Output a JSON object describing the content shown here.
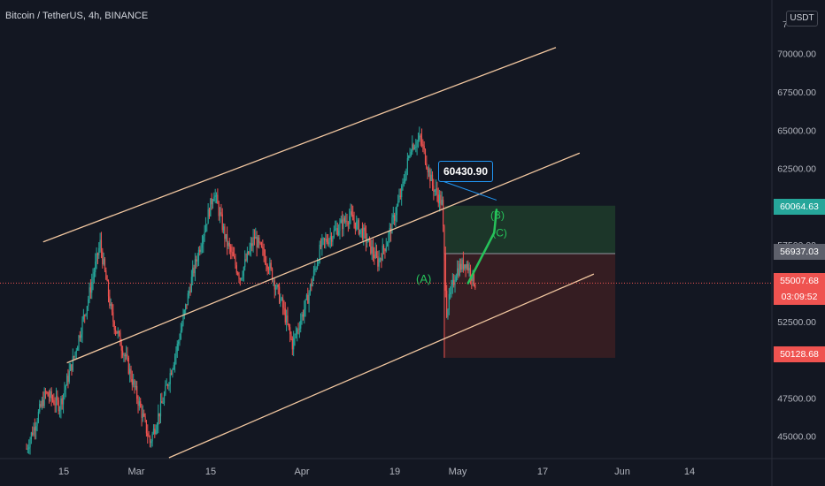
{
  "title": "Bitcoin / TetherUS, 4h, BINANCE",
  "currency_label": "USDT",
  "top_tick_fragment": "7",
  "callout_label": "60430.90",
  "wave_labels": [
    "(A)",
    "(B)",
    "(C)"
  ],
  "price_labels": {
    "target": "60064.63",
    "entry": "56937.03",
    "current": "55007.68",
    "countdown": "03:09:52",
    "stop": "50128.68"
  },
  "colors": {
    "background": "#131722",
    "axis_text": "#b2b5be",
    "channel": "#f2c7a0",
    "candle_up": "#26a69a",
    "candle_down": "#ef5350",
    "wave": "#26c35a",
    "callout_border": "#2196f3",
    "profit_zone": "#1e3a2a",
    "loss_zone": "#3a1e22",
    "current_line": "#ef5350"
  },
  "chart_data": {
    "type": "candlestick",
    "symbol": "Bitcoin / TetherUS",
    "interval": "4h",
    "exchange": "BINANCE",
    "x_tick_labels": [
      "15",
      "Mar",
      "15",
      "Apr",
      "19",
      "May",
      "17",
      "Jun",
      "14"
    ],
    "y_tick_labels": [
      "45000.00",
      "47500.00",
      "52500.00",
      "57500.00",
      "62500.00",
      "65000.00",
      "67500.00",
      "70000.00"
    ],
    "ylim": [
      43600,
      73500
    ],
    "grid": false,
    "price_path": [
      {
        "x": 0,
        "y": 44200
      },
      {
        "x": 8,
        "y": 47800
      },
      {
        "x": 14,
        "y": 47000
      },
      {
        "x": 20,
        "y": 50200
      },
      {
        "x": 26,
        "y": 54000
      },
      {
        "x": 31,
        "y": 57600
      },
      {
        "x": 36,
        "y": 52800
      },
      {
        "x": 42,
        "y": 50000
      },
      {
        "x": 48,
        "y": 46800
      },
      {
        "x": 52,
        "y": 44600
      },
      {
        "x": 58,
        "y": 47600
      },
      {
        "x": 64,
        "y": 51200
      },
      {
        "x": 70,
        "y": 55600
      },
      {
        "x": 75,
        "y": 58600
      },
      {
        "x": 79,
        "y": 61000
      },
      {
        "x": 84,
        "y": 57800
      },
      {
        "x": 90,
        "y": 55400
      },
      {
        "x": 96,
        "y": 58000
      },
      {
        "x": 102,
        "y": 56200
      },
      {
        "x": 108,
        "y": 53400
      },
      {
        "x": 112,
        "y": 51000
      },
      {
        "x": 118,
        "y": 53800
      },
      {
        "x": 124,
        "y": 57400
      },
      {
        "x": 130,
        "y": 58400
      },
      {
        "x": 136,
        "y": 59400
      },
      {
        "x": 142,
        "y": 58200
      },
      {
        "x": 148,
        "y": 56400
      },
      {
        "x": 152,
        "y": 57800
      },
      {
        "x": 158,
        "y": 61000
      },
      {
        "x": 162,
        "y": 64000
      },
      {
        "x": 166,
        "y": 64400
      },
      {
        "x": 171,
        "y": 61400
      },
      {
        "x": 175,
        "y": 60200
      },
      {
        "x": 177,
        "y": 53200
      },
      {
        "x": 181,
        "y": 55800
      },
      {
        "x": 185,
        "y": 56400
      },
      {
        "x": 189,
        "y": 55000
      }
    ],
    "channel_lines": [
      {
        "name": "upper",
        "from": {
          "x": 7,
          "y": 57700
        },
        "to": {
          "x": 223,
          "y": 70400
        }
      },
      {
        "name": "middle",
        "from": {
          "x": 17,
          "y": 49800
        },
        "to": {
          "x": 233,
          "y": 63500
        }
      },
      {
        "name": "lower",
        "from": {
          "x": 60,
          "y": 43600
        },
        "to": {
          "x": 239,
          "y": 55600
        }
      }
    ],
    "risk_reward": {
      "entry": 56937.03,
      "target": 60064.63,
      "stop": 50128.68,
      "x_start": 176,
      "x_end": 248
    },
    "current_price": 55007.68,
    "projection": [
      {
        "label": "(A)",
        "x": 186,
        "y": 55000
      },
      {
        "label": "(C)",
        "x": 197,
        "y": 58300
      },
      {
        "label": "(B)",
        "x": 198,
        "y": 59800
      }
    ],
    "callout": {
      "label": "60430.90",
      "x": 198,
      "y": 60430.9
    }
  }
}
